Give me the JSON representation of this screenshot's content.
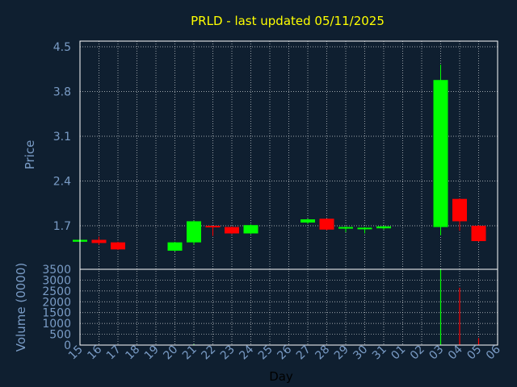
{
  "chart_data": {
    "type": "candlestick",
    "title": "PRLD - last updated 05/11/2025",
    "xlabel": "Day",
    "price_ylabel": "Price",
    "volume_ylabel": "Volume (0000)",
    "x_ticks": [
      "15",
      "16",
      "17",
      "18",
      "19",
      "20",
      "21",
      "22",
      "23",
      "24",
      "25",
      "26",
      "27",
      "28",
      "29",
      "30",
      "31",
      "01",
      "02",
      "03",
      "04",
      "05",
      "06"
    ],
    "price_ticks": [
      "4.5",
      "3.8",
      "3.1",
      "2.4",
      "1.7"
    ],
    "price_ylim": [
      1.0,
      4.5
    ],
    "volume_ticks": [
      "3500",
      "3000",
      "2500",
      "2000",
      "1500",
      "1000",
      "500",
      "0"
    ],
    "volume_ylim": [
      0,
      3500
    ],
    "grid": true,
    "colors": {
      "background": "#0f1f30",
      "up": "#00ff00",
      "down": "#ff0000",
      "title": "#ffff00",
      "label": "#7a9cc6",
      "axis": "#ffffff",
      "grid": "#ffffff"
    },
    "candles": [
      {
        "x": "15",
        "open": 1.45,
        "close": 1.48,
        "high": 1.49,
        "low": 1.44
      },
      {
        "x": "16",
        "open": 1.48,
        "close": 1.43,
        "high": 1.53,
        "low": 1.4
      },
      {
        "x": "17",
        "open": 1.44,
        "close": 1.33,
        "high": 1.45,
        "low": 1.32
      },
      {
        "x": "20",
        "open": 1.31,
        "close": 1.44,
        "high": 1.45,
        "low": 1.3
      },
      {
        "x": "21",
        "open": 1.44,
        "close": 1.77,
        "high": 1.78,
        "low": 1.4
      },
      {
        "x": "22",
        "open": 1.7,
        "close": 1.68,
        "high": 1.7,
        "low": 1.54
      },
      {
        "x": "23",
        "open": 1.68,
        "close": 1.58,
        "high": 1.69,
        "low": 1.57
      },
      {
        "x": "24",
        "open": 1.58,
        "close": 1.71,
        "high": 1.72,
        "low": 1.57
      },
      {
        "x": "27",
        "open": 1.75,
        "close": 1.8,
        "high": 1.81,
        "low": 1.73
      },
      {
        "x": "28",
        "open": 1.81,
        "close": 1.64,
        "high": 1.81,
        "low": 1.63
      },
      {
        "x": "29",
        "open": 1.67,
        "close": 1.68,
        "high": 1.69,
        "low": 1.6
      },
      {
        "x": "30",
        "open": 1.66,
        "close": 1.67,
        "high": 1.68,
        "low": 1.58
      },
      {
        "x": "31",
        "open": 1.66,
        "close": 1.69,
        "high": 1.7,
        "low": 1.64
      },
      {
        "x": "03",
        "open": 1.68,
        "close": 3.98,
        "high": 4.22,
        "low": 1.55
      },
      {
        "x": "04",
        "open": 2.12,
        "close": 1.77,
        "high": 2.13,
        "low": 1.62
      },
      {
        "x": "05",
        "open": 1.7,
        "close": 1.46,
        "high": 1.71,
        "low": 1.45
      }
    ],
    "volume": [
      {
        "x": "20",
        "value": 15,
        "dir": "up"
      },
      {
        "x": "21",
        "value": 40,
        "dir": "up"
      },
      {
        "x": "22",
        "value": 10,
        "dir": "down"
      },
      {
        "x": "28",
        "value": 10,
        "dir": "down"
      },
      {
        "x": "03",
        "value": 3500,
        "dir": "up"
      },
      {
        "x": "04",
        "value": 2650,
        "dir": "down"
      },
      {
        "x": "05",
        "value": 320,
        "dir": "down"
      }
    ]
  }
}
